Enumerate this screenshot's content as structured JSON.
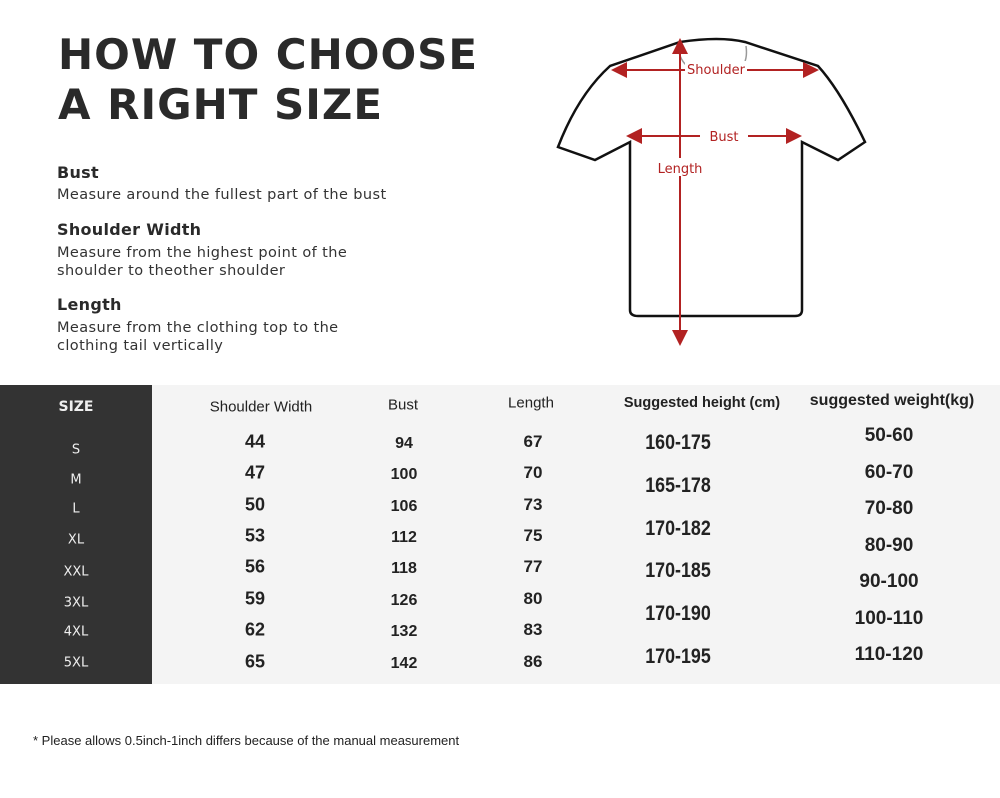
{
  "title": {
    "line1": "HOW TO CHOOSE",
    "line2": "A RIGHT SIZE"
  },
  "guide": [
    {
      "heading": "Bust",
      "desc": [
        "Measure around the fullest part of the bust"
      ]
    },
    {
      "heading": "Shoulder Width",
      "desc": [
        "Measure from the highest point of the",
        "shoulder to theother shoulder"
      ]
    },
    {
      "heading": "Length",
      "desc": [
        "Measure from the clothing top to the",
        "clothing tail vertically"
      ]
    }
  ],
  "diagram": {
    "shoulder": "Shoulder",
    "bust": "Bust",
    "length": "Length",
    "arrow_color": "#b22222"
  },
  "table": {
    "headers": {
      "size": "SIZE",
      "shoulder": "Shoulder Width",
      "bust": "Bust",
      "length": "Length",
      "height": "Suggested height (cm)",
      "weight": "suggested  weight(kg)"
    },
    "sizes": [
      "S",
      "M",
      "L",
      "XL",
      "XXL",
      "3XL",
      "4XL",
      "5XL"
    ],
    "shoulder": [
      "44",
      "47",
      "50",
      "53",
      "56",
      "59",
      "62",
      "65"
    ],
    "bust": [
      "94",
      "100",
      "106",
      "112",
      "118",
      "126",
      "132",
      "142"
    ],
    "length": [
      "67",
      "70",
      "73",
      "75",
      "77",
      "80",
      "83",
      "86"
    ],
    "height": [
      "160-175",
      "165-178",
      "170-182",
      "170-185",
      "170-190",
      "170-195"
    ],
    "weight": [
      "50-60",
      "60-70",
      "70-80",
      "80-90",
      "90-100",
      "100-110",
      "110-120"
    ]
  },
  "note": "* Please allows 0.5inch-1inch differs because of the  manual measurement"
}
